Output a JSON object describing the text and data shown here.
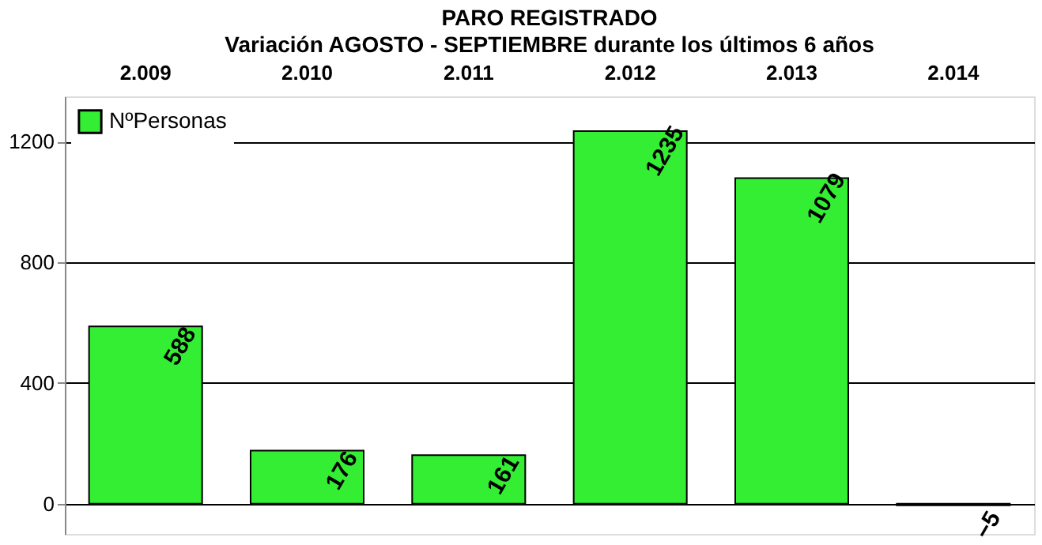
{
  "chart_data": {
    "type": "bar",
    "title": "PARO REGISTRADO",
    "subtitle": "Variación  AGOSTO - SEPTIEMBRE   durante los últimos 6 años",
    "categories": [
      "2.009",
      "2.010",
      "2.011",
      "2.012",
      "2.013",
      "2.014"
    ],
    "series": [
      {
        "name": "NºPersonas",
        "color": "#33ee33",
        "values": [
          588,
          176,
          161,
          1235,
          1079,
          -5
        ]
      }
    ],
    "ylim": [
      -100,
      1350
    ],
    "yticks": [
      0,
      400,
      800,
      1200
    ],
    "grid": "y",
    "legend": "top left",
    "data_labels": true
  }
}
